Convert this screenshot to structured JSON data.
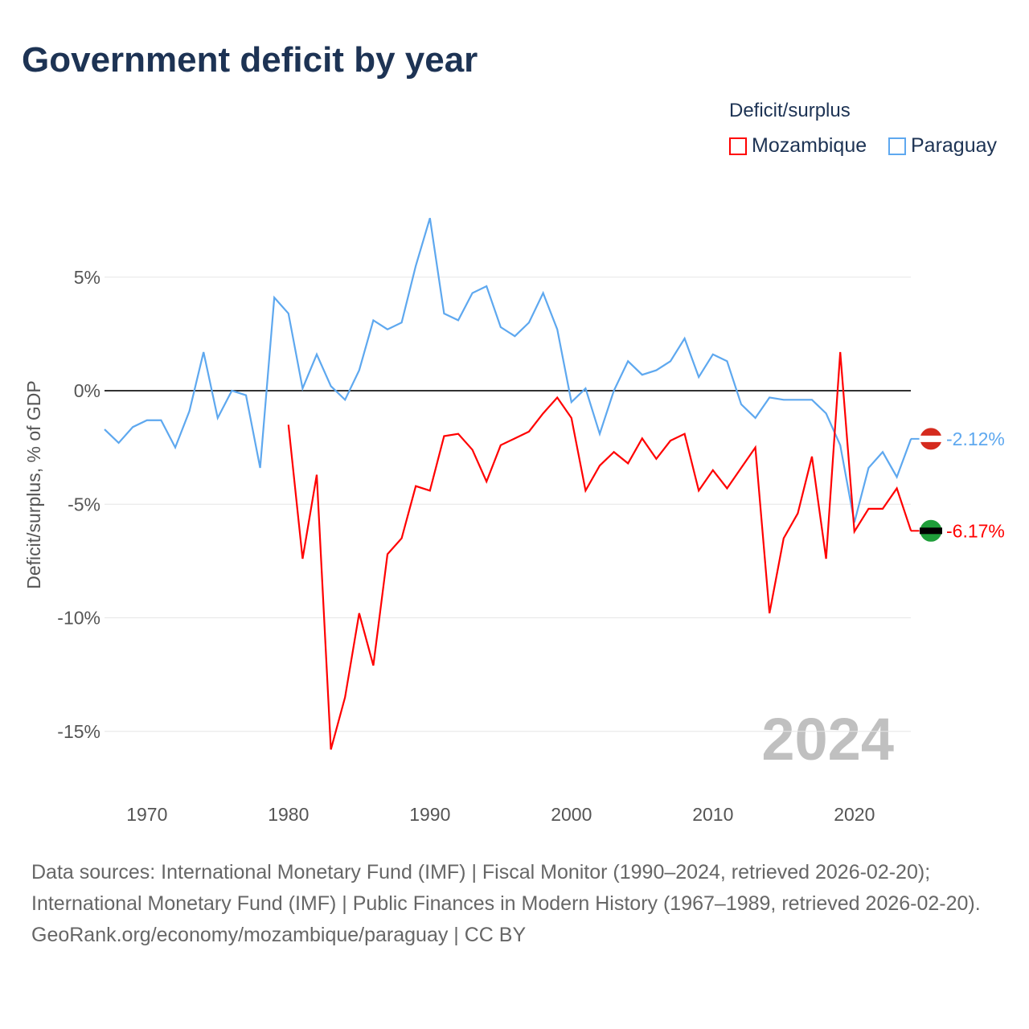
{
  "title": "Government deficit by year",
  "legend": {
    "title": "Deficit/surplus",
    "items": [
      {
        "name": "Mozambique",
        "color": "#ff0000"
      },
      {
        "name": "Paraguay",
        "color": "#5ea8ef"
      }
    ]
  },
  "watermark_year": "2024",
  "source_lines": [
    "Data sources: International Monetary Fund (IMF) | Fiscal Monitor (1990–2024, retrieved 2026-02-20); International Monetary Fund (IMF) | Public Finances in Modern History (1967–1989, retrieved 2026-02-20).",
    "GeoRank.org/economy/mozambique/paraguay | CC BY"
  ],
  "chart_data": {
    "type": "line",
    "title": "Government deficit by year",
    "ylabel": "Deficit/surplus, % of GDP",
    "xlabel": "",
    "xlim": [
      1967,
      2024
    ],
    "ylim": [
      -17,
      10
    ],
    "xticks": [
      1970,
      1980,
      1990,
      2000,
      2010,
      2020
    ],
    "yticks": [
      {
        "v": 5,
        "label": "5%"
      },
      {
        "v": 0,
        "label": "0%"
      },
      {
        "v": -5,
        "label": "-5%"
      },
      {
        "v": -10,
        "label": "-10%"
      },
      {
        "v": -15,
        "label": "-15%"
      }
    ],
    "series": [
      {
        "name": "Paraguay",
        "color": "#5ea8ef",
        "end_label": "-2.12%",
        "start": 1967,
        "values": [
          -1.7,
          -2.3,
          -1.6,
          -1.3,
          -1.3,
          -2.5,
          -0.9,
          1.7,
          -1.2,
          0,
          -0.2,
          -3.4,
          4.1,
          3.4,
          0.1,
          1.6,
          0.2,
          -0.4,
          0.9,
          3.1,
          2.7,
          3.0,
          5.5,
          7.6,
          3.4,
          3.1,
          4.3,
          4.6,
          2.8,
          2.4,
          3.0,
          4.3,
          2.7,
          -0.5,
          0.1,
          -1.9,
          0,
          1.3,
          0.7,
          0.9,
          1.3,
          2.3,
          0.6,
          1.6,
          1.3,
          -0.6,
          -1.2,
          -0.3,
          -0.4,
          -0.4,
          -0.4,
          -1.0,
          -2.4,
          -5.8,
          -3.4,
          -2.7,
          -3.8,
          -2.12
        ]
      },
      {
        "name": "Mozambique",
        "color": "#ff0000",
        "end_label": "-6.17%",
        "start": 1980,
        "values": [
          -1.5,
          -7.4,
          -3.7,
          -15.8,
          -13.5,
          -9.8,
          -12.1,
          -7.2,
          -6.5,
          -4.2,
          -4.4,
          -2.0,
          -1.9,
          -2.6,
          -4.0,
          -2.4,
          -2.1,
          -1.8,
          -1.0,
          -0.3,
          -1.2,
          -4.4,
          -3.3,
          -2.7,
          -3.2,
          -2.1,
          -3.0,
          -2.2,
          -1.9,
          -4.4,
          -3.5,
          -4.3,
          -3.4,
          -2.5,
          -9.8,
          -6.5,
          -5.4,
          -2.9,
          -7.4,
          1.7,
          -6.2,
          -5.2,
          -5.2,
          -4.3,
          -6.17
        ]
      }
    ]
  }
}
